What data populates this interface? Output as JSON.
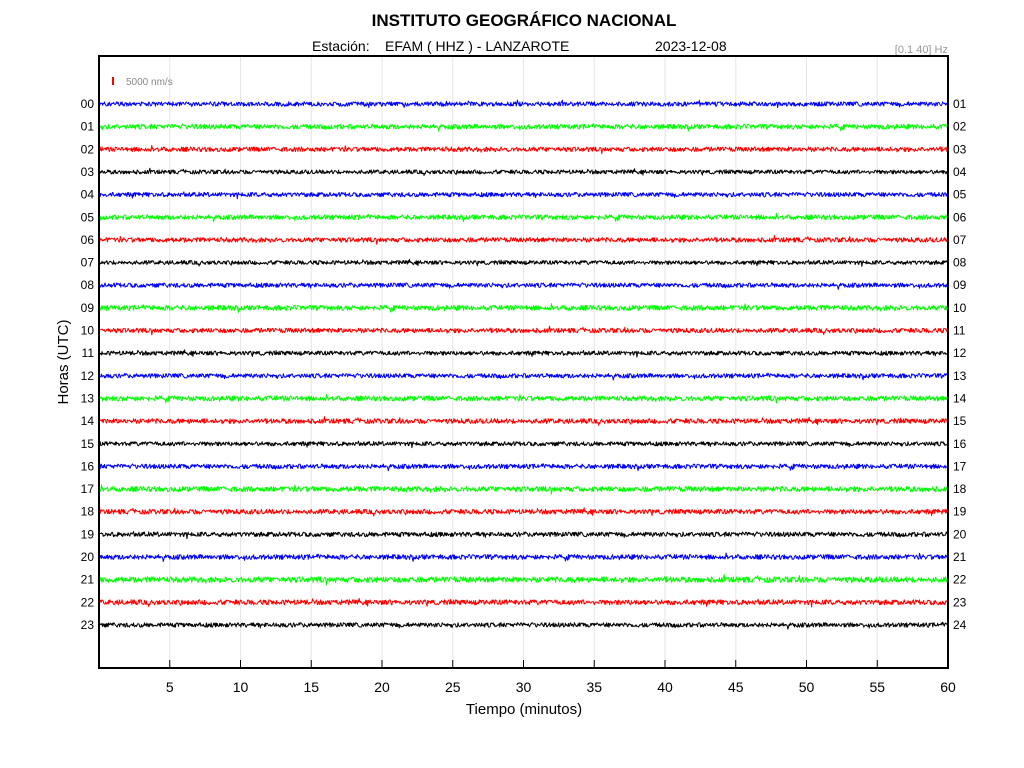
{
  "chart_data": {
    "type": "line",
    "title": "INSTITUTO GEOGRÁFICO NACIONAL",
    "station_prefix": "Estación:",
    "station": "EFAM ( HHZ ) - LANZAROTE",
    "date": "2023-12-08",
    "filter_band": "[0.1 40] Hz",
    "scale_label": "5000 nm/s",
    "xlabel": "Tiempo (minutos)",
    "ylabel": "Horas (UTC)",
    "xlim": [
      0,
      60
    ],
    "x_ticks": [
      5,
      10,
      15,
      20,
      25,
      30,
      35,
      40,
      45,
      50,
      55,
      60
    ],
    "x_tick_labels": [
      "5",
      "10",
      "15",
      "20",
      "25",
      "30",
      "35",
      "40",
      "45",
      "50",
      "55",
      "60"
    ],
    "left_hour_labels": [
      "00",
      "01",
      "02",
      "03",
      "04",
      "05",
      "06",
      "07",
      "08",
      "09",
      "10",
      "11",
      "12",
      "13",
      "14",
      "15",
      "16",
      "17",
      "18",
      "19",
      "20",
      "21",
      "22",
      "23"
    ],
    "right_hour_labels": [
      "01",
      "02",
      "03",
      "04",
      "05",
      "06",
      "07",
      "08",
      "09",
      "10",
      "11",
      "12",
      "13",
      "14",
      "15",
      "16",
      "17",
      "18",
      "19",
      "20",
      "21",
      "22",
      "23",
      "24"
    ],
    "trace_colors": [
      "#0000ff",
      "#00ff00",
      "#ff0000",
      "#000000"
    ],
    "scale_bar_color": "#ff0000",
    "grid": "vertical",
    "series": [
      {
        "values": []
      },
      {
        "values": []
      },
      {
        "values": []
      },
      {
        "values": []
      },
      {
        "values": []
      },
      {
        "values": []
      },
      {
        "values": []
      },
      {
        "values": []
      },
      {
        "values": []
      },
      {
        "values": []
      },
      {
        "values": []
      },
      {
        "values": []
      },
      {
        "values": []
      },
      {
        "values": []
      },
      {
        "values": []
      },
      {
        "values": []
      },
      {
        "values": []
      },
      {
        "values": []
      },
      {
        "values": []
      },
      {
        "values": []
      },
      {
        "values": []
      },
      {
        "values": []
      },
      {
        "values": []
      },
      {
        "values": []
      }
    ]
  }
}
